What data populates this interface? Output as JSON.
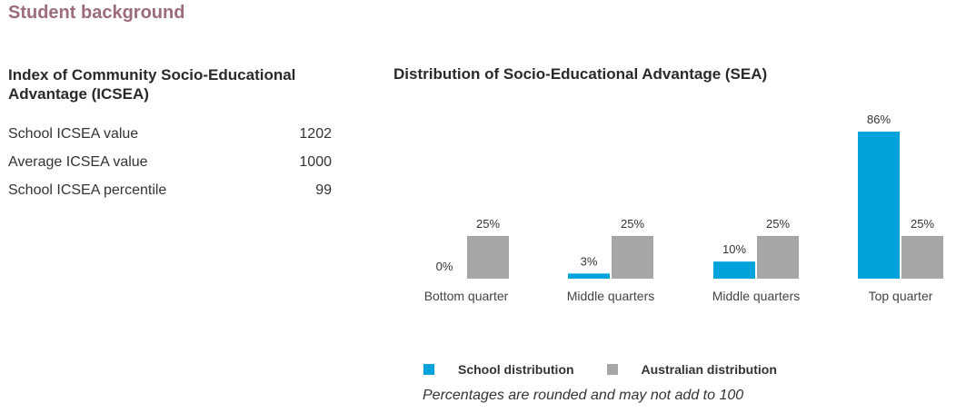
{
  "page": {
    "section_title": "Student background"
  },
  "icsea": {
    "heading": "Index of Community Socio-Educational Advantage (ICSEA)",
    "rows": [
      {
        "label": "School ICSEA value",
        "value": "1202"
      },
      {
        "label": "Average ICSEA value",
        "value": "1000"
      },
      {
        "label": "School ICSEA percentile",
        "value": "99"
      }
    ]
  },
  "chart_heading": "Distribution of Socio-Educational Advantage (SEA)",
  "chart_data": {
    "type": "bar",
    "categories": [
      "Bottom quarter",
      "Middle quarters",
      "Middle quarters",
      "Top quarter"
    ],
    "series": [
      {
        "name": "School distribution",
        "values": [
          0,
          3,
          10,
          86
        ],
        "labels": [
          "0%",
          "3%",
          "10%",
          "86%"
        ],
        "color": "#00a3dc"
      },
      {
        "name": "Australian distribution",
        "values": [
          25,
          25,
          25,
          25
        ],
        "labels": [
          "25%",
          "25%",
          "25%",
          "25%"
        ],
        "color": "#a6a6a6"
      }
    ],
    "ylim": [
      0,
      86
    ],
    "grid": false,
    "legend_position": "bottom"
  },
  "note": "Percentages are rounded and may not add to 100"
}
